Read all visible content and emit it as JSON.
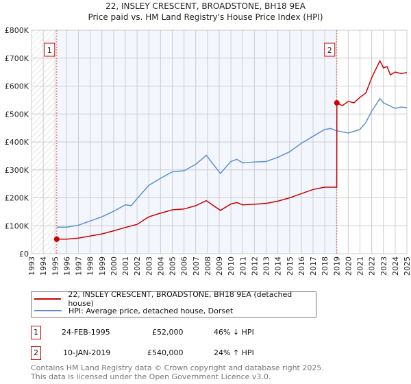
{
  "chart_data": {
    "type": "line",
    "title": "22, INSLEY CRESCENT, BROADSTONE, BH18 9EA",
    "subtitle": "Price paid vs. HM Land Registry's House Price Index (HPI)",
    "xlim": [
      1993,
      2025
    ],
    "ylim": [
      0,
      800000
    ],
    "x_ticks": [
      "1993",
      "1994",
      "1995",
      "1996",
      "1997",
      "1998",
      "1999",
      "2000",
      "2001",
      "2002",
      "2003",
      "2004",
      "2005",
      "2006",
      "2007",
      "2008",
      "2009",
      "2010",
      "2011",
      "2012",
      "2013",
      "2014",
      "2015",
      "2016",
      "2017",
      "2018",
      "2019",
      "2020",
      "2021",
      "2022",
      "2023",
      "2024",
      "2025"
    ],
    "y_ticks": [
      {
        "v": 0,
        "label": "£0"
      },
      {
        "v": 100000,
        "label": "£100K"
      },
      {
        "v": 200000,
        "label": "£200K"
      },
      {
        "v": 300000,
        "label": "£300K"
      },
      {
        "v": 400000,
        "label": "£400K"
      },
      {
        "v": 500000,
        "label": "£500K"
      },
      {
        "v": 600000,
        "label": "£600K"
      },
      {
        "v": 700000,
        "label": "£700K"
      },
      {
        "v": 800000,
        "label": "£800K"
      }
    ],
    "grid": true,
    "series": [
      {
        "name": "22, INSLEY CRESCENT, BROADSTONE, BH18 9EA (detached house)",
        "color": "#cc0000",
        "x": [
          1995.15,
          1996,
          1997,
          1998,
          1999,
          2000,
          2001,
          2002,
          2003,
          2004,
          2005,
          2006,
          2007,
          2007.9,
          2009.1,
          2010,
          2010.5,
          2011,
          2012,
          2013,
          2014,
          2015,
          2016,
          2017,
          2018,
          2019.02,
          2019.03,
          2019.5,
          2020,
          2020.5,
          2021,
          2021.5,
          2022,
          2022.7,
          2023,
          2023.3,
          2023.6,
          2024,
          2024.5,
          2025
        ],
        "y": [
          52000,
          52000,
          56000,
          63000,
          71000,
          82000,
          94000,
          105000,
          132000,
          145000,
          157000,
          160000,
          172000,
          190000,
          155000,
          178000,
          183000,
          175000,
          177000,
          180000,
          188000,
          200000,
          215000,
          230000,
          238000,
          238000,
          540000,
          530000,
          545000,
          540000,
          560000,
          575000,
          630000,
          690000,
          665000,
          670000,
          640000,
          650000,
          645000,
          648000
        ]
      },
      {
        "name": "HPI: Average price, detached house, Dorset",
        "color": "#5b8fd4",
        "x": [
          1995.15,
          1996,
          1997,
          1998,
          1999,
          2000,
          2001,
          2001.5,
          2002,
          2003,
          2004,
          2005,
          2006,
          2007,
          2007.9,
          2009.1,
          2010,
          2010.5,
          2011,
          2012,
          2013,
          2014,
          2015,
          2016,
          2017,
          2018,
          2018.5,
          2019,
          2020,
          2020.5,
          2021,
          2021.5,
          2022,
          2022.7,
          2023,
          2023.5,
          2024,
          2024.5,
          2025
        ],
        "y": [
          95000,
          95000,
          102000,
          117000,
          132000,
          152000,
          175000,
          172000,
          197000,
          245000,
          270000,
          293000,
          297000,
          320000,
          352000,
          287000,
          330000,
          338000,
          325000,
          328000,
          330000,
          345000,
          365000,
          395000,
          420000,
          445000,
          448000,
          440000,
          432000,
          438000,
          445000,
          470000,
          510000,
          555000,
          540000,
          530000,
          520000,
          525000,
          523000
        ]
      }
    ],
    "annotations": [
      {
        "label": "1",
        "x": 1995.15,
        "y": 52000
      },
      {
        "label": "2",
        "x": 2019.03,
        "y": 540000
      }
    ],
    "legend_position": "bottom"
  },
  "colors": {
    "property": "#cc0000",
    "hpi": "#5b8fd4",
    "shade": "#f3f6fd"
  },
  "sales": [
    {
      "n": "1",
      "date": "24-FEB-1995",
      "price": "£52,000",
      "hpi": "46% ↓ HPI"
    },
    {
      "n": "2",
      "date": "10-JAN-2019",
      "price": "£540,000",
      "hpi": "24% ↑ HPI"
    }
  ],
  "footer": {
    "line1": "Contains HM Land Registry data © Crown copyright and database right 2025.",
    "line2": "This data is licensed under the Open Government Licence v3.0."
  }
}
